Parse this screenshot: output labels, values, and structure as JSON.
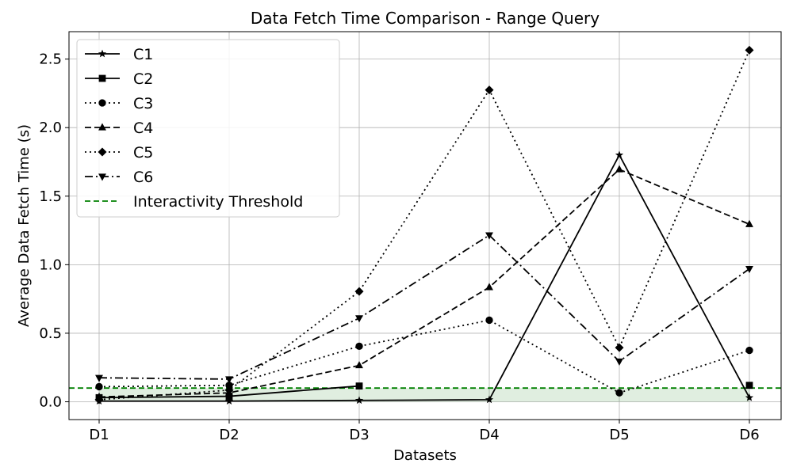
{
  "chart_data": {
    "type": "line",
    "title": "Data Fetch Time Comparison - Range Query",
    "xlabel": "Datasets",
    "ylabel": "Average Data Fetch Time (s)",
    "categories": [
      "D1",
      "D2",
      "D3",
      "D4",
      "D5",
      "D6"
    ],
    "ylim": [
      -0.13,
      2.7
    ],
    "yticks": [
      0.0,
      0.5,
      1.0,
      1.5,
      2.0,
      2.5
    ],
    "ytick_labels": [
      "0.0",
      "0.5",
      "1.0",
      "1.5",
      "2.0",
      "2.5"
    ],
    "grid": true,
    "legend_position": "top-left",
    "series": [
      {
        "name": "C1",
        "values": [
          0.005,
          0.005,
          0.01,
          0.015,
          1.8,
          0.03
        ],
        "linestyle": "solid",
        "marker": "star",
        "color": "#000000"
      },
      {
        "name": "C2",
        "values": [
          0.03,
          0.04,
          0.115,
          null,
          null,
          0.12
        ],
        "linestyle": "solid",
        "marker": "square",
        "color": "#000000"
      },
      {
        "name": "C3",
        "values": [
          0.11,
          0.12,
          0.405,
          0.595,
          0.065,
          0.375
        ],
        "linestyle": "dotted",
        "marker": "circle",
        "color": "#000000"
      },
      {
        "name": "C4",
        "values": [
          0.035,
          0.065,
          0.265,
          0.835,
          1.695,
          1.295
        ],
        "linestyle": "dashed",
        "marker": "triangle-up",
        "color": "#000000"
      },
      {
        "name": "C5",
        "values": [
          0.015,
          0.085,
          0.805,
          2.275,
          0.395,
          2.565
        ],
        "linestyle": "dotted",
        "marker": "diamond",
        "color": "#000000"
      },
      {
        "name": "C6",
        "values": [
          0.175,
          0.165,
          0.61,
          1.215,
          0.295,
          0.97
        ],
        "linestyle": "dashdot",
        "marker": "triangle-down",
        "color": "#000000"
      }
    ],
    "threshold": {
      "name": "Interactivity Threshold",
      "value": 0.1,
      "color": "#008000",
      "fill_color": "#2e8b2e"
    }
  }
}
